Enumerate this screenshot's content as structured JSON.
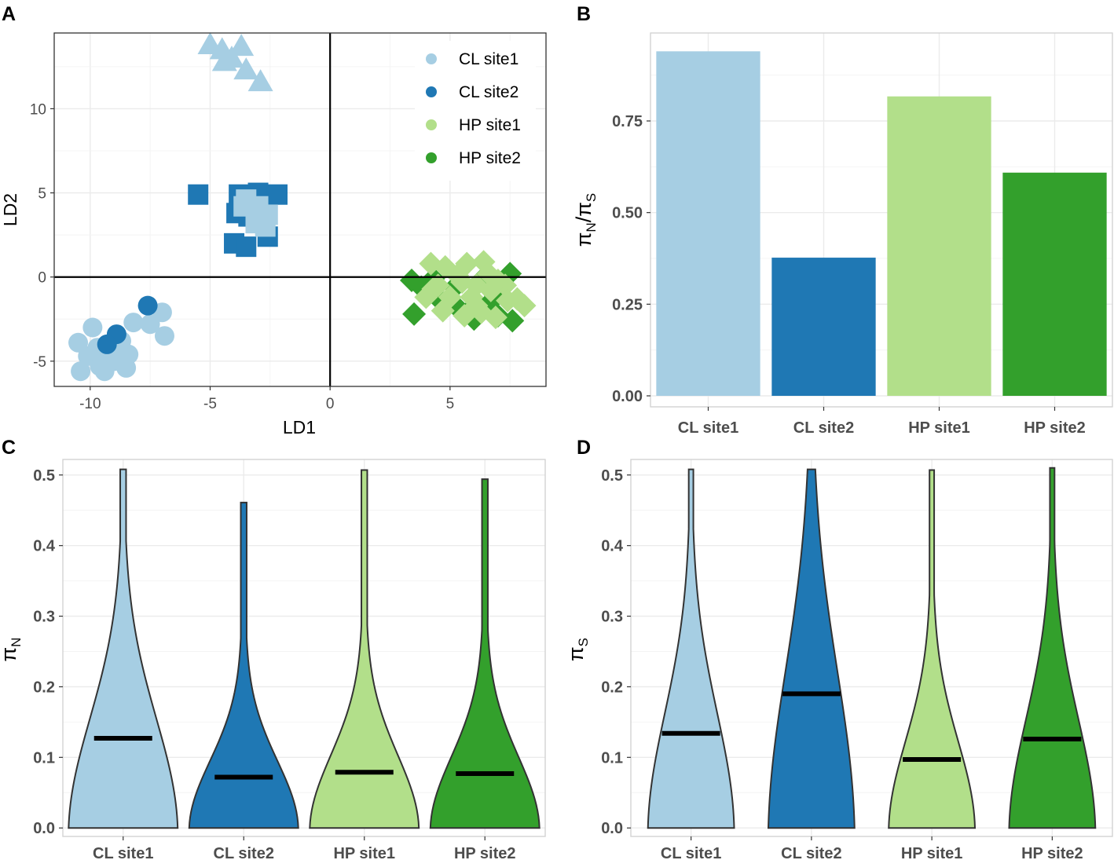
{
  "colors": {
    "CL site1": "#a6cee3",
    "CL site2": "#1f78b4",
    "HP site1": "#b2df8a",
    "HP site2": "#33a02c"
  },
  "panels": {
    "A": "A",
    "B": "B",
    "C": "C",
    "D": "D"
  },
  "chart_data": [
    {
      "panel": "A",
      "type": "scatter",
      "xlabel": "LD1",
      "ylabel": "LD2",
      "xlim": [
        -11.5,
        9
      ],
      "ylim": [
        -6.5,
        14.5
      ],
      "xticks": [
        -10,
        -5,
        0,
        5
      ],
      "xtick_labels": [
        "-10",
        "-5",
        "0",
        "5"
      ],
      "yticks": [
        -5,
        0,
        5,
        10
      ],
      "ytick_labels": [
        "-5",
        "0",
        "5",
        "10"
      ],
      "legend": [
        "CL site1",
        "CL site2",
        "HP site1",
        "HP site2"
      ],
      "legend_position": "top-right",
      "series": [
        {
          "name": "CL site1 (circles)",
          "group": "CL site1",
          "shape": "circle",
          "points": [
            [
              -10.4,
              -5.6
            ],
            [
              -10.1,
              -4.7
            ],
            [
              -9.7,
              -4.2
            ],
            [
              -9.2,
              -4.5
            ],
            [
              -9.6,
              -5.3
            ],
            [
              -9.0,
              -5.0
            ],
            [
              -8.8,
              -4.1
            ],
            [
              -8.4,
              -4.6
            ],
            [
              -8.5,
              -5.4
            ],
            [
              -10.5,
              -3.9
            ],
            [
              -9.9,
              -3.0
            ],
            [
              -8.2,
              -2.7
            ],
            [
              -7.5,
              -2.8
            ],
            [
              -7.0,
              -2.1
            ],
            [
              -6.9,
              -3.5
            ],
            [
              -9.4,
              -5.6
            ],
            [
              -8.7,
              -3.8
            ]
          ]
        },
        {
          "name": "CL site2 (circles)",
          "group": "CL site2",
          "shape": "circle",
          "points": [
            [
              -7.6,
              -1.7
            ],
            [
              -8.9,
              -3.4
            ],
            [
              -9.3,
              -4.0
            ]
          ]
        },
        {
          "name": "CL site1 (triangles)",
          "group": "CL site1",
          "shape": "triangle",
          "points": [
            [
              -5.0,
              13.8
            ],
            [
              -4.5,
              13.5
            ],
            [
              -3.7,
              13.7
            ],
            [
              -4.1,
              13.0
            ],
            [
              -3.5,
              12.3
            ],
            [
              -2.9,
              11.6
            ],
            [
              -4.4,
              12.8
            ]
          ]
        },
        {
          "name": "CL site2 (squares)",
          "group": "CL site2",
          "shape": "square",
          "points": [
            [
              -5.5,
              4.9
            ],
            [
              -3.8,
              4.9
            ],
            [
              -3.0,
              5.0
            ],
            [
              -2.2,
              4.9
            ],
            [
              -3.9,
              3.8
            ],
            [
              -3.4,
              3.6
            ],
            [
              -4.0,
              2.0
            ],
            [
              -3.5,
              1.8
            ],
            [
              -2.6,
              2.4
            ],
            [
              -3.2,
              4.1
            ]
          ]
        },
        {
          "name": "CL site1 (squares)",
          "group": "CL site1",
          "shape": "square",
          "points": [
            [
              -3.5,
              4.6
            ],
            [
              -3.0,
              4.2
            ],
            [
              -2.6,
              3.7
            ],
            [
              -3.1,
              3.2
            ],
            [
              -2.7,
              3.0
            ],
            [
              -3.6,
              4.2
            ]
          ]
        },
        {
          "name": "HP site2 (diamonds)",
          "group": "HP site2",
          "shape": "diamond",
          "points": [
            [
              3.4,
              -0.2
            ],
            [
              3.8,
              -0.6
            ],
            [
              4.3,
              -0.1
            ],
            [
              3.5,
              -2.2
            ],
            [
              4.6,
              -1.4
            ],
            [
              5.2,
              -0.6
            ],
            [
              5.8,
              -2.0
            ],
            [
              6.3,
              -0.2
            ],
            [
              6.9,
              -1.1
            ],
            [
              7.5,
              0.2
            ],
            [
              7.0,
              -2.3
            ],
            [
              6.0,
              -2.5
            ],
            [
              7.6,
              -2.6
            ],
            [
              5.3,
              -1.8
            ],
            [
              6.6,
              -1.6
            ]
          ]
        },
        {
          "name": "HP site1 (diamonds)",
          "group": "HP site1",
          "shape": "diamond",
          "points": [
            [
              4.2,
              0.8
            ],
            [
              4.8,
              0.6
            ],
            [
              5.7,
              0.8
            ],
            [
              6.4,
              0.9
            ],
            [
              4.5,
              -0.5
            ],
            [
              4.0,
              -1.2
            ],
            [
              5.0,
              -1.2
            ],
            [
              5.5,
              -0.3
            ],
            [
              6.1,
              -0.5
            ],
            [
              6.7,
              -0.8
            ],
            [
              7.3,
              -0.5
            ],
            [
              7.8,
              -1.3
            ],
            [
              8.1,
              -1.7
            ],
            [
              4.7,
              -2.0
            ],
            [
              5.6,
              -2.3
            ],
            [
              6.3,
              -2.1
            ],
            [
              6.9,
              -2.4
            ],
            [
              7.4,
              -1.4
            ],
            [
              5.9,
              -1.2
            ],
            [
              6.6,
              0.2
            ],
            [
              5.3,
              0.1
            ],
            [
              6.1,
              -1.7
            ],
            [
              7.0,
              -0.2
            ],
            [
              4.3,
              -0.7
            ]
          ]
        }
      ]
    },
    {
      "panel": "B",
      "type": "bar",
      "title": "",
      "xlabel": "",
      "ylabel": "πN/πS",
      "categories": [
        "CL site1",
        "CL site2",
        "HP site1",
        "HP site2"
      ],
      "values": [
        0.94,
        0.377,
        0.817,
        0.609
      ],
      "ylim": [
        -0.03,
        0.99
      ],
      "yticks": [
        0,
        0.25,
        0.5,
        0.75
      ],
      "ytick_labels": [
        "0.00",
        "0.25",
        "0.50",
        "0.75"
      ]
    },
    {
      "panel": "C",
      "type": "violin",
      "ylabel": "πN",
      "categories": [
        "CL site1",
        "CL site2",
        "HP site1",
        "HP site2"
      ],
      "means": [
        0.127,
        0.072,
        0.079,
        0.077
      ],
      "maxima": [
        0.508,
        0.461,
        0.507,
        0.494
      ],
      "ylim": [
        -0.012,
        0.522
      ],
      "yticks": [
        0,
        0.1,
        0.2,
        0.3,
        0.4,
        0.5
      ],
      "ytick_labels": [
        "0.0",
        "0.1",
        "0.2",
        "0.3",
        "0.4",
        "0.5"
      ]
    },
    {
      "panel": "D",
      "type": "violin",
      "ylabel": "πS",
      "categories": [
        "CL site1",
        "CL site2",
        "HP site1",
        "HP site2"
      ],
      "means": [
        0.134,
        0.19,
        0.097,
        0.126
      ],
      "maxima": [
        0.508,
        0.508,
        0.507,
        0.51
      ],
      "ylim": [
        -0.012,
        0.522
      ],
      "yticks": [
        0,
        0.1,
        0.2,
        0.3,
        0.4,
        0.5
      ],
      "ytick_labels": [
        "0.0",
        "0.1",
        "0.2",
        "0.3",
        "0.4",
        "0.5"
      ]
    }
  ]
}
